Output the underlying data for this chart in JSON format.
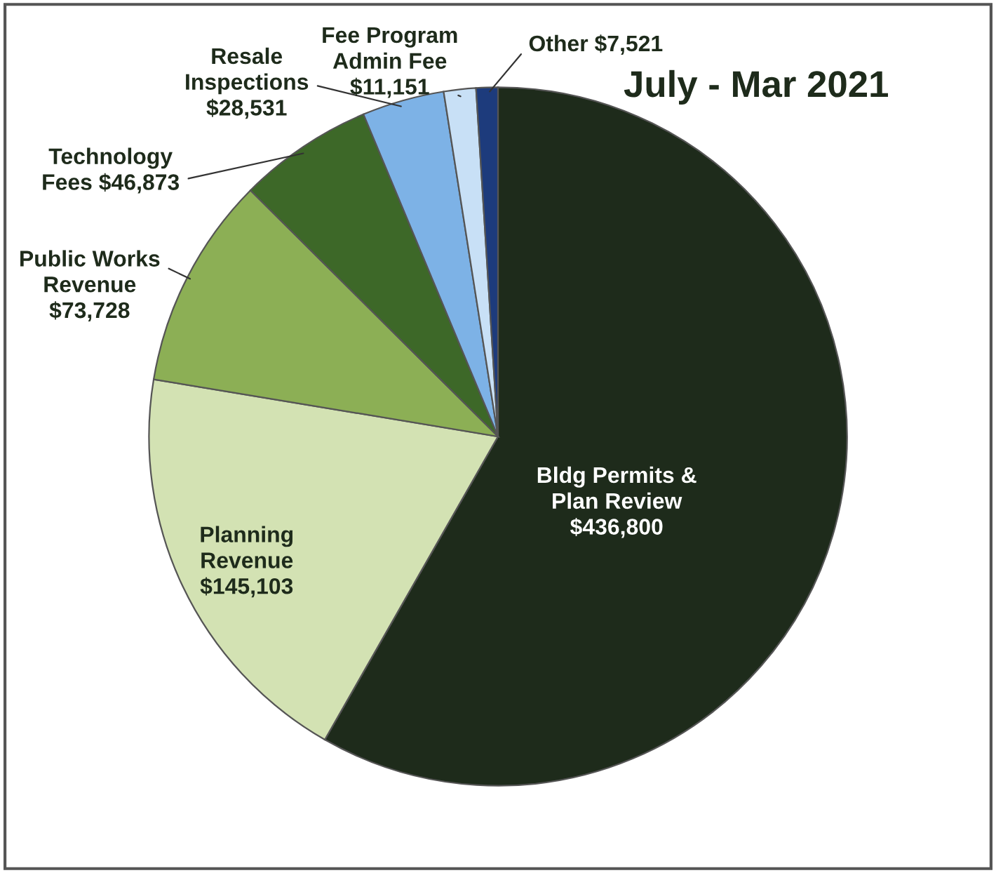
{
  "chart_data": {
    "type": "pie",
    "title": "July - Mar 2021",
    "categories": [
      "Bldg Permits & Plan Review",
      "Planning Revenue",
      "Public Works Revenue",
      "Technology Fees",
      "Resale Inspections",
      "Fee Program Admin Fee",
      "Other"
    ],
    "values": [
      436800,
      145103,
      73728,
      46873,
      28531,
      11151,
      7521
    ],
    "value_labels": [
      "$436,800",
      "$145,103",
      "$73,728",
      "$46,873",
      "$28,531",
      "$11,151",
      "$7,521"
    ],
    "colors": [
      "#1e2b1b",
      "#d3e2b3",
      "#8caf55",
      "#3d6828",
      "#7db2e6",
      "#c8e0f6",
      "#1d3b7c"
    ],
    "legend": false
  }
}
